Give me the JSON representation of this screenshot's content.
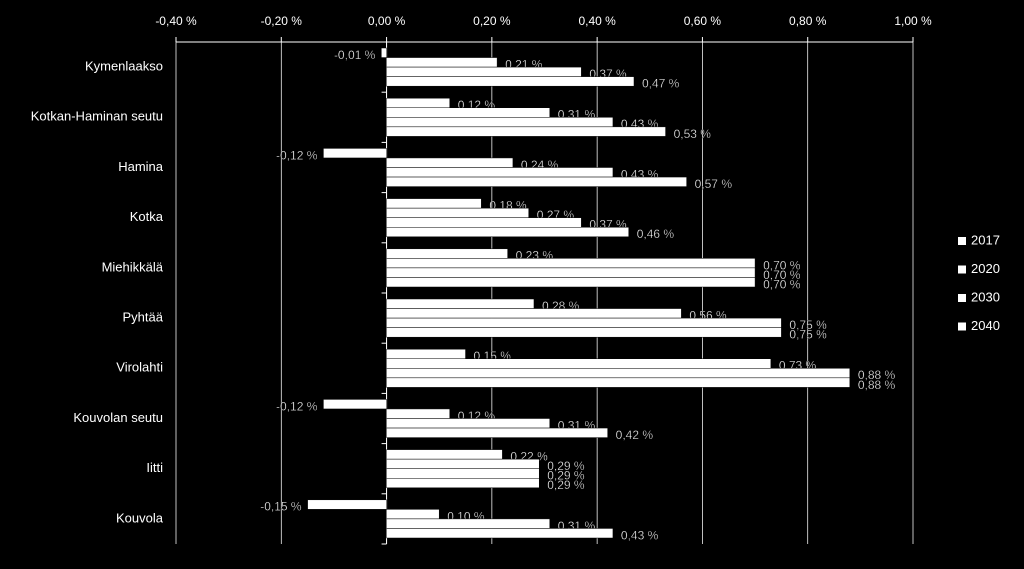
{
  "chart_data": {
    "type": "bar",
    "orientation": "horizontal",
    "categories": [
      "Kymenlaakso",
      "Kotkan-Haminan seutu",
      "Hamina",
      "Kotka",
      "Miehikkälä",
      "Pyhtää",
      "Virolahti",
      "Kouvolan seutu",
      "Iitti",
      "Kouvola"
    ],
    "series": [
      {
        "name": "2017",
        "color": "#ffffff",
        "values": [
          -0.01,
          0.12,
          -0.12,
          0.18,
          0.23,
          0.28,
          0.15,
          -0.12,
          0.22,
          -0.15
        ],
        "value_labels": [
          "-0,01 %",
          "0,12 %",
          "-0,12 %",
          "0,18 %",
          "0,23 %",
          "0,28 %",
          "0,15 %",
          "-0,12 %",
          "0,22 %",
          "-0,15 %"
        ]
      },
      {
        "name": "2020",
        "color": "#ffffff",
        "values": [
          0.21,
          0.31,
          0.24,
          0.27,
          0.7,
          0.56,
          0.73,
          0.12,
          0.29,
          0.1
        ],
        "value_labels": [
          "0,21 %",
          "0,31 %",
          "0,24 %",
          "0,27 %",
          "0,70 %",
          "0,56 %",
          "0,73 %",
          "0,12 %",
          "0,29 %",
          "0,10 %"
        ]
      },
      {
        "name": "2030",
        "color": "#ffffff",
        "values": [
          0.37,
          0.43,
          0.43,
          0.37,
          0.7,
          0.75,
          0.88,
          0.31,
          0.29,
          0.31
        ],
        "value_labels": [
          "0,37 %",
          "0,43 %",
          "0,43 %",
          "0,37 %",
          "0,70 %",
          "0,75 %",
          "0,88 %",
          "0,31 %",
          "0,29 %",
          "0,31 %"
        ]
      },
      {
        "name": "2040",
        "color": "#ffffff",
        "values": [
          0.47,
          0.53,
          0.57,
          0.46,
          0.7,
          0.75,
          0.88,
          0.42,
          0.29,
          0.43
        ],
        "value_labels": [
          "0,47 %",
          "0,53 %",
          "0,57 %",
          "0,46 %",
          "0,70 %",
          "0,75 %",
          "0,88 %",
          "0,42 %",
          "0,29 %",
          "0,43 %"
        ]
      }
    ],
    "xlim": [
      -0.4,
      1.0
    ],
    "xticks": [
      {
        "value": -0.4,
        "label": "-0,40 %"
      },
      {
        "value": -0.2,
        "label": "-0,20 %"
      },
      {
        "value": 0,
        "label": "0,00 %"
      },
      {
        "value": 0.2,
        "label": "0,20 %"
      },
      {
        "value": 0.4,
        "label": "0,40 %"
      },
      {
        "value": 0.6,
        "label": "0,60 %"
      },
      {
        "value": 0.8,
        "label": "0,80 %"
      },
      {
        "value": 1.0,
        "label": "1,00 %"
      }
    ],
    "grid": true,
    "legend": "right"
  }
}
